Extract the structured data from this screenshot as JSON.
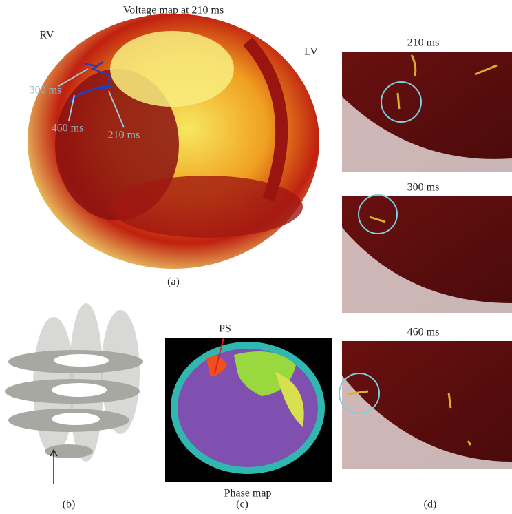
{
  "panels": [
    {
      "label": "(a)",
      "title": "Voltage map at 210 ms",
      "annotations": [
        "RV",
        "LV",
        "300 ms",
        "460 ms",
        "210 ms"
      ]
    },
    {
      "label": "(b)"
    },
    {
      "label": "(c)",
      "annotations": [
        "PS"
      ],
      "caption": "Phase map"
    },
    {
      "label": "(d)",
      "frames": [
        "210 ms",
        "300 ms",
        "460 ms"
      ]
    }
  ]
}
